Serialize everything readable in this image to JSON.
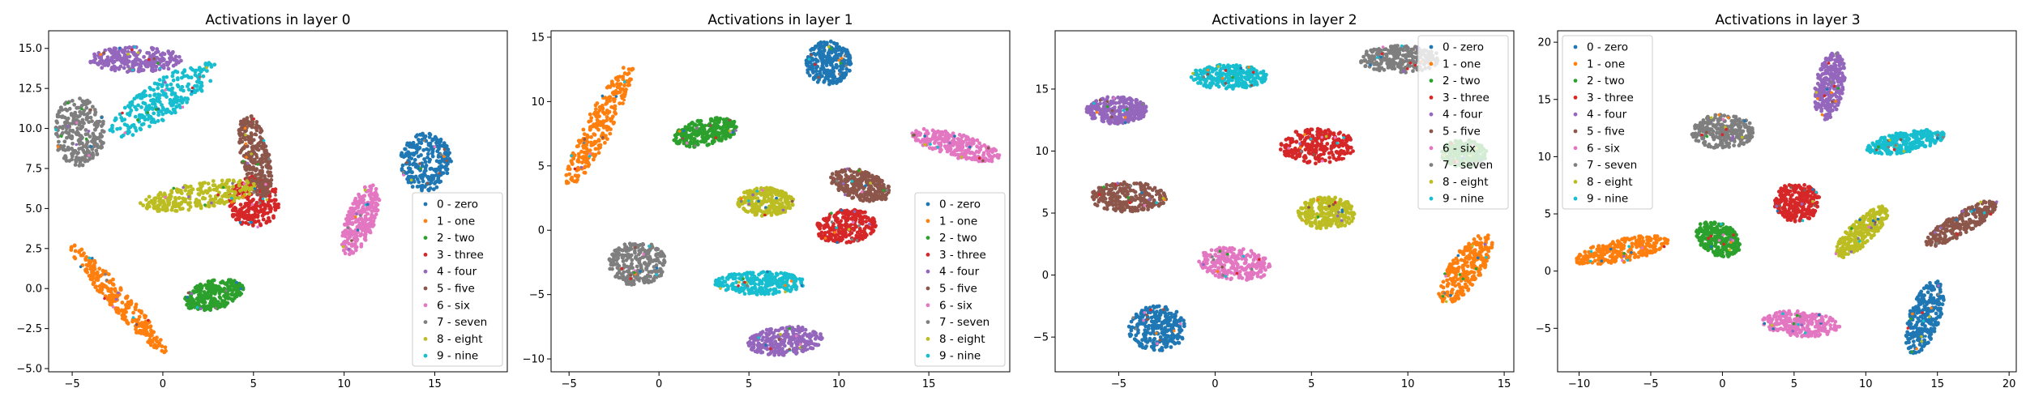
{
  "charts": [
    {
      "title": "Activations in layer 0",
      "xlim": [
        -6.3,
        19.0
      ],
      "ylim": [
        -5.2,
        16.1
      ],
      "xticks": [
        -5,
        0,
        5,
        10,
        15
      ],
      "yticks": [
        -5.0,
        -2.5,
        0.0,
        2.5,
        5.0,
        7.5,
        10.0,
        12.5,
        15.0
      ],
      "ytick_labels": [
        "−5.0",
        "−2.5",
        "0.0",
        "2.5",
        "5.0",
        "7.5",
        "10.0",
        "12.5",
        "15.0"
      ],
      "xtick_labels": [
        "−5",
        "0",
        "5",
        "10",
        "15"
      ],
      "legend_position": "lower-right"
    },
    {
      "title": "Activations in layer 1",
      "xlim": [
        -6.0,
        19.5
      ],
      "ylim": [
        -11.0,
        15.5
      ],
      "xticks": [
        -5,
        0,
        5,
        10,
        15
      ],
      "yticks": [
        -10,
        -5,
        0,
        5,
        10,
        15
      ],
      "ytick_labels": [
        "−10",
        "−5",
        "0",
        "5",
        "10",
        "15"
      ],
      "xtick_labels": [
        "−5",
        "0",
        "5",
        "10",
        "15"
      ],
      "legend_position": "lower-right"
    },
    {
      "title": "Activations in layer 2",
      "xlim": [
        -8.3,
        15.5
      ],
      "ylim": [
        -7.8,
        19.7
      ],
      "xticks": [
        -5,
        0,
        5,
        10,
        15
      ],
      "yticks": [
        -5,
        0,
        5,
        10,
        15
      ],
      "ytick_labels": [
        "−5",
        "0",
        "5",
        "10",
        "15"
      ],
      "xtick_labels": [
        "−5",
        "0",
        "5",
        "10",
        "15"
      ],
      "legend_position": "upper-right"
    },
    {
      "title": "Activations in layer 3",
      "xlim": [
        -11.5,
        20.5
      ],
      "ylim": [
        -8.8,
        21.0
      ],
      "xticks": [
        -10,
        -5,
        0,
        5,
        10,
        15,
        20
      ],
      "yticks": [
        -5,
        0,
        5,
        10,
        15,
        20
      ],
      "ytick_labels": [
        "−5",
        "0",
        "5",
        "10",
        "15",
        "20"
      ],
      "xtick_labels": [
        "−10",
        "−5",
        "0",
        "5",
        "10",
        "15",
        "20"
      ],
      "legend_position": "upper-left"
    }
  ],
  "legend_entries": [
    "0 - zero",
    "1 - one",
    "2 - two",
    "3 - three",
    "4 - four",
    "5 - five",
    "6 - six",
    "7 - seven",
    "8 - eight",
    "9 - nine"
  ],
  "colors": [
    "#1f77b4",
    "#ff7f0e",
    "#2ca02c",
    "#d62728",
    "#9467bd",
    "#8c564b",
    "#e377c2",
    "#7f7f7f",
    "#bcbd22",
    "#17becf"
  ],
  "chart_data": [
    {
      "type": "scatter",
      "title": "Activations in layer 0",
      "xlim": [
        -6.3,
        19.0
      ],
      "ylim": [
        -5.2,
        16.1
      ],
      "legend": "lower-right",
      "clusters": [
        {
          "label": 0,
          "name": "0 - zero",
          "cx": 14.5,
          "cy": 7.9,
          "rx": 1.4,
          "ry": 1.8,
          "angle": 0
        },
        {
          "label": 1,
          "name": "1 - one",
          "cx": -2.5,
          "cy": -0.6,
          "rx": 4.3,
          "ry": 0.6,
          "angle": -52
        },
        {
          "label": 2,
          "name": "2 - two",
          "cx": 2.8,
          "cy": -0.4,
          "rx": 1.7,
          "ry": 0.9,
          "angle": 18
        },
        {
          "label": 3,
          "name": "3 - three",
          "cx": 5.0,
          "cy": 5.4,
          "rx": 1.4,
          "ry": 1.6,
          "angle": 0
        },
        {
          "label": 4,
          "name": "4 - four",
          "cx": -1.5,
          "cy": 14.3,
          "rx": 2.6,
          "ry": 0.8,
          "angle": 0
        },
        {
          "label": 5,
          "name": "5 - five",
          "cx": 5.1,
          "cy": 8.3,
          "rx": 2.7,
          "ry": 0.8,
          "angle": -80
        },
        {
          "label": 6,
          "name": "6 - six",
          "cx": 10.9,
          "cy": 4.3,
          "rx": 2.3,
          "ry": 0.8,
          "angle": 72
        },
        {
          "label": 7,
          "name": "7 - seven",
          "cx": -4.6,
          "cy": 9.8,
          "rx": 1.4,
          "ry": 2.2,
          "angle": 0
        },
        {
          "label": 8,
          "name": "8 - eight",
          "cx": 2.0,
          "cy": 5.8,
          "rx": 3.3,
          "ry": 0.8,
          "angle": 10
        },
        {
          "label": 9,
          "name": "9 - nine",
          "cx": 0.0,
          "cy": 11.8,
          "rx": 3.6,
          "ry": 1.1,
          "angle": 38
        }
      ]
    },
    {
      "type": "scatter",
      "title": "Activations in layer 1",
      "xlim": [
        -6.0,
        19.5
      ],
      "ylim": [
        -11.0,
        15.5
      ],
      "legend": "lower-right",
      "clusters": [
        {
          "label": 0,
          "name": "0 - zero",
          "cx": 9.4,
          "cy": 13.0,
          "rx": 1.3,
          "ry": 1.7,
          "angle": 0
        },
        {
          "label": 1,
          "name": "1 - one",
          "cx": -3.3,
          "cy": 8.2,
          "rx": 5.0,
          "ry": 0.8,
          "angle": 70
        },
        {
          "label": 2,
          "name": "2 - two",
          "cx": 2.6,
          "cy": 7.6,
          "rx": 1.9,
          "ry": 1.0,
          "angle": 20
        },
        {
          "label": 3,
          "name": "3 - three",
          "cx": 10.4,
          "cy": 0.3,
          "rx": 1.7,
          "ry": 1.3,
          "angle": 18
        },
        {
          "label": 4,
          "name": "4 - four",
          "cx": 7.0,
          "cy": -8.6,
          "rx": 2.1,
          "ry": 1.1,
          "angle": 8
        },
        {
          "label": 5,
          "name": "5 - five",
          "cx": 11.2,
          "cy": 3.5,
          "rx": 1.8,
          "ry": 1.1,
          "angle": -30
        },
        {
          "label": 6,
          "name": "6 - six",
          "cx": 16.5,
          "cy": 6.6,
          "rx": 2.6,
          "ry": 0.9,
          "angle": -22
        },
        {
          "label": 7,
          "name": "7 - seven",
          "cx": -1.2,
          "cy": -2.6,
          "rx": 1.6,
          "ry": 1.7,
          "angle": 0
        },
        {
          "label": 8,
          "name": "8 - eight",
          "cx": 5.9,
          "cy": 2.2,
          "rx": 1.6,
          "ry": 1.1,
          "angle": 0
        },
        {
          "label": 9,
          "name": "9 - nine",
          "cx": 5.6,
          "cy": -4.1,
          "rx": 2.5,
          "ry": 0.9,
          "angle": 0
        }
      ]
    },
    {
      "type": "scatter",
      "title": "Activations in layer 2",
      "xlim": [
        -8.3,
        15.5
      ],
      "ylim": [
        -7.8,
        19.7
      ],
      "legend": "upper-right",
      "clusters": [
        {
          "label": 0,
          "name": "0 - zero",
          "cx": -3.0,
          "cy": -4.3,
          "rx": 1.5,
          "ry": 1.8,
          "angle": 0
        },
        {
          "label": 1,
          "name": "1 - one",
          "cx": 13.0,
          "cy": 0.5,
          "rx": 3.0,
          "ry": 0.9,
          "angle": 68
        },
        {
          "label": 2,
          "name": "2 - two",
          "cx": 12.9,
          "cy": 9.8,
          "rx": 1.2,
          "ry": 1.1,
          "angle": 0
        },
        {
          "label": 3,
          "name": "3 - three",
          "cx": 5.3,
          "cy": 10.4,
          "rx": 2.0,
          "ry": 1.4,
          "angle": 0
        },
        {
          "label": 4,
          "name": "4 - four",
          "cx": -5.1,
          "cy": 13.3,
          "rx": 1.6,
          "ry": 1.1,
          "angle": 0
        },
        {
          "label": 5,
          "name": "5 - five",
          "cx": -4.5,
          "cy": 6.3,
          "rx": 2.0,
          "ry": 1.2,
          "angle": 0
        },
        {
          "label": 6,
          "name": "6 - six",
          "cx": 1.0,
          "cy": 0.9,
          "rx": 1.9,
          "ry": 1.3,
          "angle": -15
        },
        {
          "label": 7,
          "name": "7 - seven",
          "cx": 9.6,
          "cy": 17.4,
          "rx": 2.1,
          "ry": 1.1,
          "angle": 0
        },
        {
          "label": 8,
          "name": "8 - eight",
          "cx": 5.8,
          "cy": 5.0,
          "rx": 1.5,
          "ry": 1.3,
          "angle": 0
        },
        {
          "label": 9,
          "name": "9 - nine",
          "cx": 0.7,
          "cy": 16.0,
          "rx": 2.0,
          "ry": 1.0,
          "angle": 0
        }
      ]
    },
    {
      "type": "scatter",
      "title": "Activations in layer 3",
      "xlim": [
        -11.5,
        20.5
      ],
      "ylim": [
        -8.8,
        21.0
      ],
      "legend": "upper-left",
      "clusters": [
        {
          "label": 0,
          "name": "0 - zero",
          "cx": 14.1,
          "cy": -4.0,
          "rx": 3.3,
          "ry": 1.1,
          "angle": 75
        },
        {
          "label": 1,
          "name": "1 - one",
          "cx": -7.0,
          "cy": 1.8,
          "rx": 3.4,
          "ry": 1.0,
          "angle": 15
        },
        {
          "label": 2,
          "name": "2 - two",
          "cx": -0.3,
          "cy": 2.8,
          "rx": 1.8,
          "ry": 1.3,
          "angle": -45
        },
        {
          "label": 3,
          "name": "3 - three",
          "cx": 5.2,
          "cy": 6.0,
          "rx": 1.6,
          "ry": 1.7,
          "angle": 0
        },
        {
          "label": 4,
          "name": "4 - four",
          "cx": 7.5,
          "cy": 16.2,
          "rx": 3.0,
          "ry": 1.0,
          "angle": 82
        },
        {
          "label": 5,
          "name": "5 - five",
          "cx": 16.7,
          "cy": 4.2,
          "rx": 3.1,
          "ry": 0.9,
          "angle": 38
        },
        {
          "label": 6,
          "name": "6 - six",
          "cx": 5.5,
          "cy": -4.6,
          "rx": 2.7,
          "ry": 1.1,
          "angle": -5
        },
        {
          "label": 7,
          "name": "7 - seven",
          "cx": 0.0,
          "cy": 12.2,
          "rx": 2.2,
          "ry": 1.5,
          "angle": 0
        },
        {
          "label": 8,
          "name": "8 - eight",
          "cx": 9.7,
          "cy": 3.4,
          "rx": 2.8,
          "ry": 0.9,
          "angle": 52
        },
        {
          "label": 9,
          "name": "9 - nine",
          "cx": 12.8,
          "cy": 11.3,
          "rx": 2.8,
          "ry": 0.9,
          "angle": 14
        }
      ]
    }
  ]
}
